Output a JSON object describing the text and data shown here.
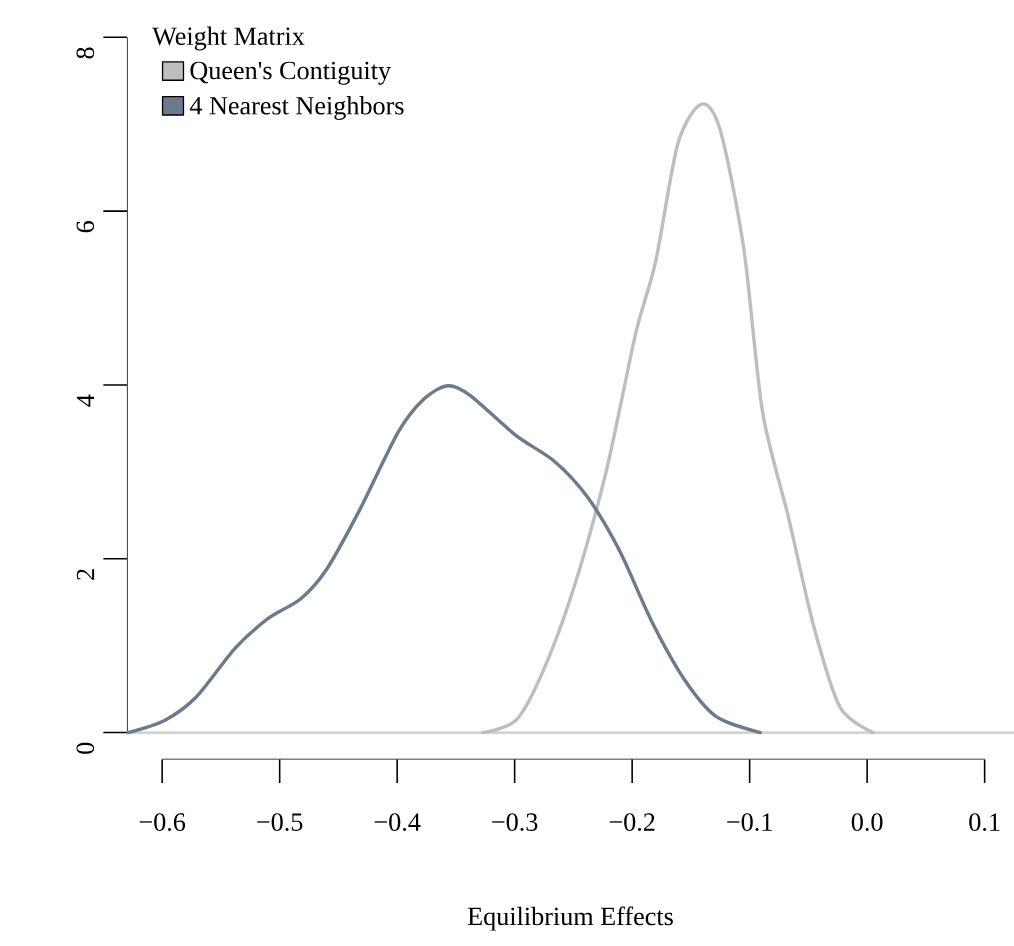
{
  "chart_data": {
    "type": "line",
    "xlabel": "Equilibrium Effects",
    "legend_title": "Weight Matrix",
    "legend": "top left",
    "xlim": [
      -0.63,
      0.125
    ],
    "ylim": [
      -0.31,
      8
    ],
    "xticks": [
      {
        "value": -0.6,
        "label": "−0.6"
      },
      {
        "value": -0.5,
        "label": "−0.5"
      },
      {
        "value": -0.4,
        "label": "−0.4"
      },
      {
        "value": -0.3,
        "label": "−0.3"
      },
      {
        "value": -0.2,
        "label": "−0.2"
      },
      {
        "value": -0.1,
        "label": "−0.1"
      },
      {
        "value": 0.0,
        "label": "0.0"
      },
      {
        "value": 0.1,
        "label": "0.1"
      }
    ],
    "yticks": [
      0,
      2,
      4,
      6,
      8
    ],
    "ref_lines": [
      {
        "axis": "y",
        "value": 0,
        "color": "#d3d3d3"
      }
    ],
    "series": [
      {
        "name": "Queen's Contiguity",
        "color": "#bebebe",
        "x": [
          -0.327,
          -0.299,
          -0.277,
          -0.25,
          -0.222,
          -0.197,
          -0.18,
          -0.161,
          -0.141,
          -0.125,
          -0.105,
          -0.089,
          -0.067,
          -0.045,
          -0.023,
          0.005
        ],
        "values": [
          0,
          0.14,
          0.67,
          1.65,
          3.01,
          4.59,
          5.42,
          6.78,
          7.23,
          6.93,
          5.57,
          3.69,
          2.48,
          1.2,
          0.29,
          0
        ]
      },
      {
        "name": "4 Nearest Neighbors",
        "color": "#6c7b8b",
        "x": [
          -0.629,
          -0.598,
          -0.571,
          -0.538,
          -0.51,
          -0.482,
          -0.46,
          -0.432,
          -0.399,
          -0.377,
          -0.357,
          -0.338,
          -0.299,
          -0.266,
          -0.238,
          -0.211,
          -0.183,
          -0.155,
          -0.128,
          -0.091
        ],
        "values": [
          0,
          0.14,
          0.41,
          0.97,
          1.31,
          1.54,
          1.88,
          2.56,
          3.46,
          3.84,
          3.99,
          3.88,
          3.42,
          3.12,
          2.71,
          2.1,
          1.27,
          0.6,
          0.18,
          0
        ]
      }
    ]
  }
}
